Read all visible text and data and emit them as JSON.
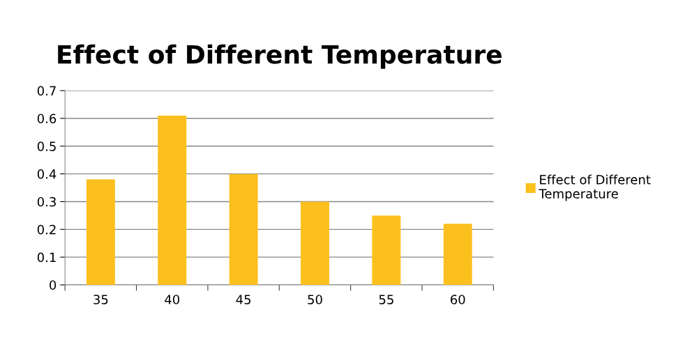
{
  "chart_data": {
    "type": "bar",
    "title": "Effect of Different Temperature",
    "categories": [
      "35",
      "40",
      "45",
      "50",
      "55",
      "60"
    ],
    "series": [
      {
        "name": "Effect of Different\nTemperature",
        "color": "#fcc01e",
        "values": [
          0.38,
          0.61,
          0.4,
          0.3,
          0.25,
          0.22
        ]
      }
    ],
    "ylim": [
      0,
      0.7
    ],
    "yticks": [
      0,
      0.1,
      0.2,
      0.3,
      0.4,
      0.5,
      0.6,
      0.7
    ],
    "grid": "y",
    "legend": "right"
  }
}
